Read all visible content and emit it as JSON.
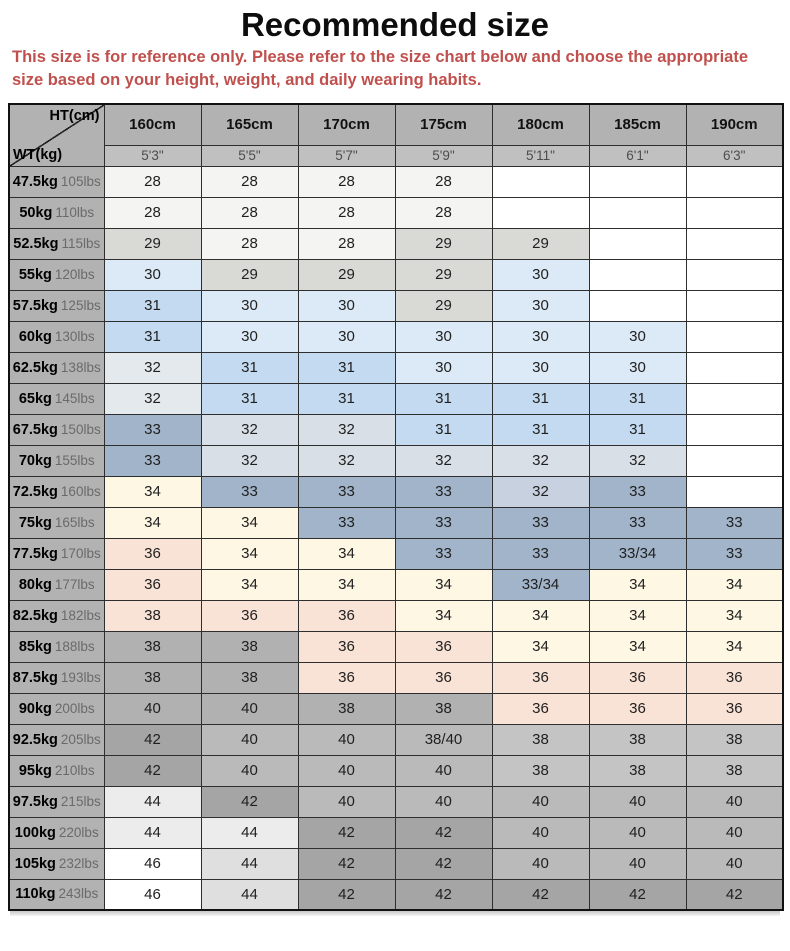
{
  "title": "Recommended size",
  "disclaimer": "This size is for reference only. Please refer to the size chart below and choose the appropriate size based on your height, weight, and daily wearing habits.",
  "palette": {
    "header": "#b2b2b2",
    "subheader": "#c0c0c0",
    "label": "#b2b2b2",
    "grid_line": "#2e2e2e",
    "disclaimer_red": "#c0504d",
    "w": "#ffffff",
    "f": "#f4f4f2",
    "g29": "#d9d9d5",
    "b30": "#dceaf7",
    "b31": "#c3daf0",
    "bg32": "#e4e9ee",
    "s32": "#d9dfe7",
    "s32d": "#c7d1e0",
    "s33": "#a2b4c9",
    "cream": "#fdf7e3",
    "pink": "#f9e2d6",
    "gray": "#b1b1b1",
    "g42": "#a5a5a5",
    "g40": "#bababa",
    "g38": "#c4c4c4",
    "g44": "#dfdfdf",
    "g44l": "#ececec"
  },
  "chart_data": {
    "type": "table",
    "corner": {
      "top_right": "HT(cm)",
      "bottom_left": "WT(kg)"
    },
    "columns_cm": [
      "160cm",
      "165cm",
      "170cm",
      "175cm",
      "180cm",
      "185cm",
      "190cm"
    ],
    "columns_ft": [
      "5'3\"",
      "5'5\"",
      "5'7\"",
      "5'9\"",
      "5'11\"",
      "6'1\"",
      "6'3\""
    ],
    "rows": [
      {
        "kg": "47.5kg",
        "lbs": "105lbs",
        "sizes": [
          "28",
          "28",
          "28",
          "28",
          "",
          "",
          ""
        ],
        "colors": [
          "f",
          "f",
          "f",
          "f",
          "w",
          "w",
          "w"
        ]
      },
      {
        "kg": "50kg",
        "lbs": "110lbs",
        "sizes": [
          "28",
          "28",
          "28",
          "28",
          "",
          "",
          ""
        ],
        "colors": [
          "f",
          "f",
          "f",
          "f",
          "w",
          "w",
          "w"
        ]
      },
      {
        "kg": "52.5kg",
        "lbs": "115lbs",
        "sizes": [
          "29",
          "28",
          "28",
          "29",
          "29",
          "",
          ""
        ],
        "colors": [
          "g29",
          "f",
          "f",
          "g29",
          "g29",
          "w",
          "w"
        ]
      },
      {
        "kg": "55kg",
        "lbs": "120lbs",
        "sizes": [
          "30",
          "29",
          "29",
          "29",
          "30",
          "",
          ""
        ],
        "colors": [
          "b30",
          "g29",
          "g29",
          "g29",
          "b30",
          "w",
          "w"
        ]
      },
      {
        "kg": "57.5kg",
        "lbs": "125lbs",
        "sizes": [
          "31",
          "30",
          "30",
          "29",
          "30",
          "",
          ""
        ],
        "colors": [
          "b31",
          "b30",
          "b30",
          "g29",
          "b30",
          "w",
          "w"
        ]
      },
      {
        "kg": "60kg",
        "lbs": "130lbs",
        "sizes": [
          "31",
          "30",
          "30",
          "30",
          "30",
          "30",
          ""
        ],
        "colors": [
          "b31",
          "b30",
          "b30",
          "b30",
          "b30",
          "b30",
          "w"
        ]
      },
      {
        "kg": "62.5kg",
        "lbs": "138lbs",
        "sizes": [
          "32",
          "31",
          "31",
          "30",
          "30",
          "30",
          ""
        ],
        "colors": [
          "bg32",
          "b31",
          "b31",
          "b30",
          "b30",
          "b30",
          "w"
        ]
      },
      {
        "kg": "65kg",
        "lbs": "145lbs",
        "sizes": [
          "32",
          "31",
          "31",
          "31",
          "31",
          "31",
          ""
        ],
        "colors": [
          "bg32",
          "b31",
          "b31",
          "b31",
          "b31",
          "b31",
          "w"
        ]
      },
      {
        "kg": "67.5kg",
        "lbs": "150lbs",
        "sizes": [
          "33",
          "32",
          "32",
          "31",
          "31",
          "31",
          ""
        ],
        "colors": [
          "s33",
          "s32",
          "s32",
          "b31",
          "b31",
          "b31",
          "w"
        ]
      },
      {
        "kg": "70kg",
        "lbs": "155lbs",
        "sizes": [
          "33",
          "32",
          "32",
          "32",
          "32",
          "32",
          ""
        ],
        "colors": [
          "s33",
          "s32",
          "s32",
          "s32",
          "s32",
          "s32",
          "w"
        ]
      },
      {
        "kg": "72.5kg",
        "lbs": "160lbs",
        "sizes": [
          "34",
          "33",
          "33",
          "33",
          "32",
          "33",
          ""
        ],
        "colors": [
          "cream",
          "s33",
          "s33",
          "s33",
          "s32d",
          "s33",
          "w"
        ]
      },
      {
        "kg": "75kg",
        "lbs": "165lbs",
        "sizes": [
          "34",
          "34",
          "33",
          "33",
          "33",
          "33",
          "33"
        ],
        "colors": [
          "cream",
          "cream",
          "s33",
          "s33",
          "s33",
          "s33",
          "s33"
        ]
      },
      {
        "kg": "77.5kg",
        "lbs": "170lbs",
        "sizes": [
          "36",
          "34",
          "34",
          "33",
          "33",
          "33/34",
          "33"
        ],
        "colors": [
          "pink",
          "cream",
          "cream",
          "s33",
          "s33",
          "s33",
          "s33"
        ]
      },
      {
        "kg": "80kg",
        "lbs": "177lbs",
        "sizes": [
          "36",
          "34",
          "34",
          "34",
          "33/34",
          "34",
          "34"
        ],
        "colors": [
          "pink",
          "cream",
          "cream",
          "cream",
          "s33",
          "cream",
          "cream"
        ]
      },
      {
        "kg": "82.5kg",
        "lbs": "182lbs",
        "sizes": [
          "38",
          "36",
          "36",
          "34",
          "34",
          "34",
          "34"
        ],
        "colors": [
          "pink",
          "pink",
          "pink",
          "cream",
          "cream",
          "cream",
          "cream"
        ]
      },
      {
        "kg": "85kg",
        "lbs": "188lbs",
        "sizes": [
          "38",
          "38",
          "36",
          "36",
          "34",
          "34",
          "34"
        ],
        "colors": [
          "gray",
          "gray",
          "pink",
          "pink",
          "cream",
          "cream",
          "cream"
        ]
      },
      {
        "kg": "87.5kg",
        "lbs": "193lbs",
        "sizes": [
          "38",
          "38",
          "36",
          "36",
          "36",
          "36",
          "36"
        ],
        "colors": [
          "gray",
          "gray",
          "pink",
          "pink",
          "pink",
          "pink",
          "pink"
        ]
      },
      {
        "kg": "90kg",
        "lbs": "200lbs",
        "sizes": [
          "40",
          "40",
          "38",
          "38",
          "36",
          "36",
          "36"
        ],
        "colors": [
          "gray",
          "gray",
          "gray",
          "gray",
          "pink",
          "pink",
          "pink"
        ]
      },
      {
        "kg": "92.5kg",
        "lbs": "205lbs",
        "sizes": [
          "42",
          "40",
          "40",
          "38/40",
          "38",
          "38",
          "38"
        ],
        "colors": [
          "g42",
          "g40",
          "g40",
          "g40",
          "g38",
          "g38",
          "g38"
        ]
      },
      {
        "kg": "95kg",
        "lbs": "210lbs",
        "sizes": [
          "42",
          "40",
          "40",
          "40",
          "38",
          "38",
          "38"
        ],
        "colors": [
          "g42",
          "g40",
          "g40",
          "g40",
          "g38",
          "g38",
          "g38"
        ]
      },
      {
        "kg": "97.5kg",
        "lbs": "215lbs",
        "sizes": [
          "44",
          "42",
          "40",
          "40",
          "40",
          "40",
          "40"
        ],
        "colors": [
          "g44l",
          "g42",
          "g40",
          "g40",
          "g40",
          "g40",
          "g40"
        ]
      },
      {
        "kg": "100kg",
        "lbs": "220lbs",
        "sizes": [
          "44",
          "44",
          "42",
          "42",
          "40",
          "40",
          "40"
        ],
        "colors": [
          "g44l",
          "g44l",
          "g42",
          "g42",
          "g40",
          "g40",
          "g40"
        ]
      },
      {
        "kg": "105kg",
        "lbs": "232lbs",
        "sizes": [
          "46",
          "44",
          "42",
          "42",
          "40",
          "40",
          "40"
        ],
        "colors": [
          "w",
          "g44",
          "g42",
          "g42",
          "g40",
          "g40",
          "g40"
        ]
      },
      {
        "kg": "110kg",
        "lbs": "243lbs",
        "sizes": [
          "46",
          "44",
          "42",
          "42",
          "42",
          "42",
          "42"
        ],
        "colors": [
          "w",
          "g44",
          "g42",
          "g42",
          "g42",
          "g42",
          "g42"
        ]
      }
    ]
  }
}
